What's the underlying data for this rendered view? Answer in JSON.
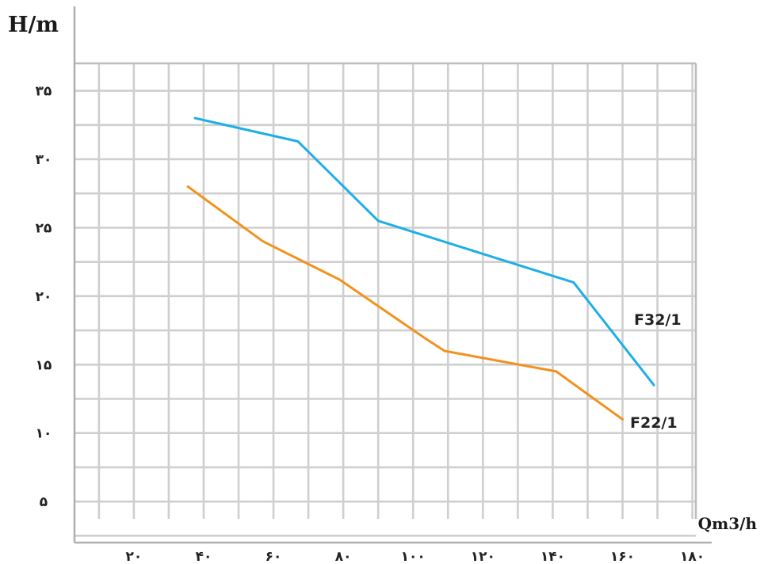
{
  "chart_data": {
    "type": "line",
    "ylabel": "H/m",
    "xlabel": "Qm3/h",
    "xticks": [
      {
        "value": 20,
        "label": "۲۰"
      },
      {
        "value": 40,
        "label": "۴۰"
      },
      {
        "value": 60,
        "label": "۶۰"
      },
      {
        "value": 80,
        "label": "۸۰"
      },
      {
        "value": 100,
        "label": "۱۰۰"
      },
      {
        "value": 120,
        "label": "۱۲۰"
      },
      {
        "value": 140,
        "label": "۱۴۰"
      },
      {
        "value": 160,
        "label": "۱۶۰"
      },
      {
        "value": 180,
        "label": "۱۸۰"
      }
    ],
    "yticks": [
      {
        "value": 5,
        "label": "۵"
      },
      {
        "value": 10,
        "label": "۱۰"
      },
      {
        "value": 15,
        "label": "۱۵"
      },
      {
        "value": 20,
        "label": "۲۰"
      },
      {
        "value": 25,
        "label": "۲۵"
      },
      {
        "value": 30,
        "label": "۳۰"
      },
      {
        "value": 35,
        "label": "۳۵"
      }
    ],
    "xlim": [
      3,
      181
    ],
    "ylim": [
      2,
      37
    ],
    "grid": true,
    "series": [
      {
        "name": "F32/1",
        "color": "#1eaee6",
        "x": [
          37.5,
          67,
          90,
          146,
          169
        ],
        "y": [
          33.0,
          31.3,
          25.5,
          21.0,
          13.5
        ]
      },
      {
        "name": "F22/1",
        "color": "#f2921e",
        "x": [
          35.5,
          57,
          79,
          103,
          109,
          141,
          160
        ],
        "y": [
          28.0,
          24.0,
          21.2,
          17.0,
          16.0,
          14.5,
          11.0
        ]
      }
    ]
  }
}
